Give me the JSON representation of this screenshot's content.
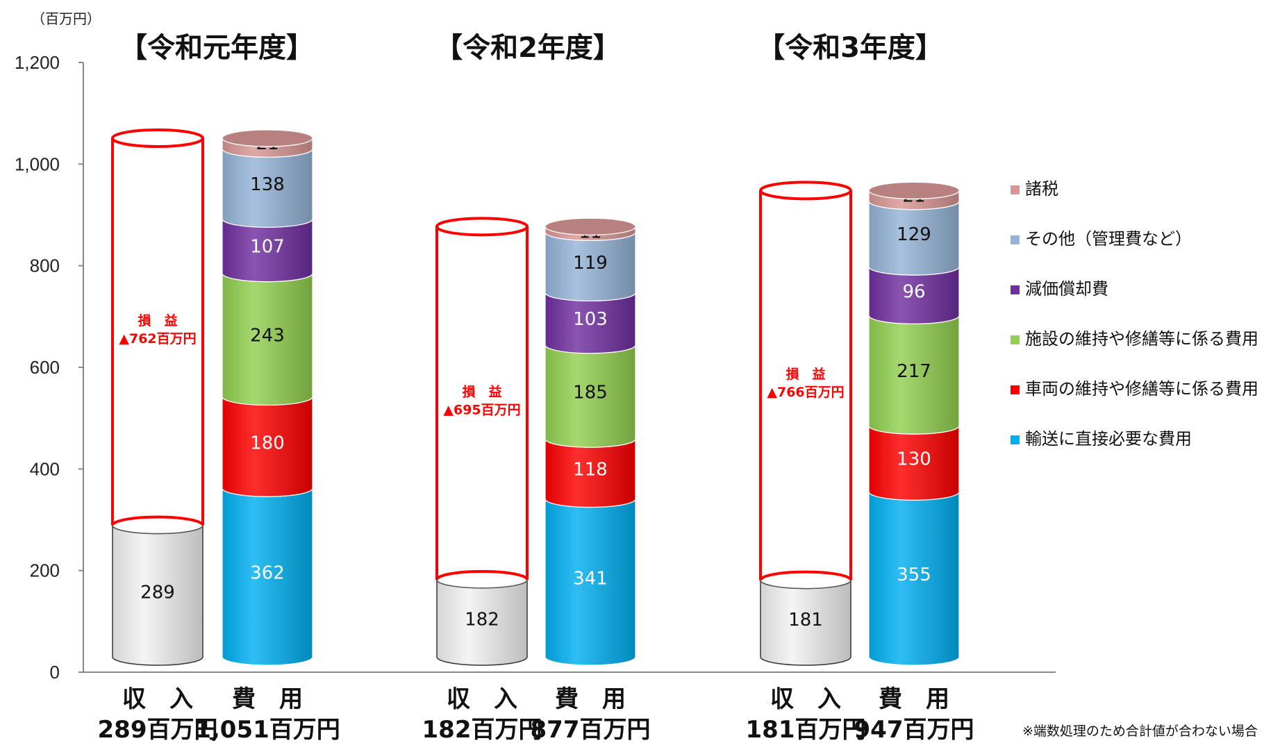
{
  "unit_label": "（百万円）",
  "footnote": "※端数処理のため合計値が合わない場合",
  "colors": {
    "tax": "#d99694",
    "other": "#95b3d7",
    "depreciation": "#7030a0",
    "facility": "#92d050",
    "vehicle": "#ff0000",
    "transport": "#00b0f0",
    "revenue": "#f2f2f2",
    "loss_outline": "#ff0000"
  },
  "chart_data": {
    "type": "bar",
    "stacked": true,
    "ylim": [
      0,
      1200
    ],
    "yticks": [
      0,
      200,
      400,
      600,
      800,
      1000,
      1200
    ],
    "ytick_labels": [
      "0",
      "200",
      "400",
      "600",
      "800",
      "1,000",
      "1,200"
    ],
    "legend_position": "right",
    "legend": [
      {
        "key": "tax",
        "label": "諸税"
      },
      {
        "key": "other",
        "label": "その他（管理費など）"
      },
      {
        "key": "depreciation",
        "label": "減価償却費"
      },
      {
        "key": "facility",
        "label": "施設の維持や修繕等に係る費用"
      },
      {
        "key": "vehicle",
        "label": "車両の維持や修繕等に係る費用"
      },
      {
        "key": "transport",
        "label": "輸送に直接必要な費用"
      }
    ],
    "groups": [
      {
        "title": "【令和元年度】",
        "revenue": {
          "value": 289,
          "label": "289",
          "category": "収　入",
          "total": "289百万円"
        },
        "loss": {
          "line1": "損　益",
          "line2": "▲762百万円"
        },
        "costs": {
          "category": "費　用",
          "total": "1,051百万円",
          "segments": [
            {
              "key": "transport",
              "value": 362,
              "label": "362"
            },
            {
              "key": "vehicle",
              "value": 180,
              "label": "180"
            },
            {
              "key": "facility",
              "value": 243,
              "label": "243"
            },
            {
              "key": "depreciation",
              "value": 107,
              "label": "107"
            },
            {
              "key": "other",
              "value": 138,
              "label": "138"
            },
            {
              "key": "tax",
              "value": 21,
              "label": "21"
            }
          ]
        }
      },
      {
        "title": "【令和2年度】",
        "revenue": {
          "value": 182,
          "label": "182",
          "category": "収　入",
          "total": "182百万円"
        },
        "loss": {
          "line1": "損　益",
          "line2": "▲695百万円"
        },
        "costs": {
          "category": "費　用",
          "total": "877百万円",
          "segments": [
            {
              "key": "transport",
              "value": 341,
              "label": "341"
            },
            {
              "key": "vehicle",
              "value": 118,
              "label": "118"
            },
            {
              "key": "facility",
              "value": 185,
              "label": "185"
            },
            {
              "key": "depreciation",
              "value": 103,
              "label": "103"
            },
            {
              "key": "other",
              "value": 119,
              "label": "119"
            },
            {
              "key": "tax",
              "value": 11,
              "label": "11"
            }
          ]
        }
      },
      {
        "title": "【令和3年度】",
        "revenue": {
          "value": 181,
          "label": "181",
          "category": "収　入",
          "total": "181百万円"
        },
        "loss": {
          "line1": "損　益",
          "line2": "▲766百万円"
        },
        "costs": {
          "category": "費　用",
          "total": "947百万円",
          "segments": [
            {
              "key": "transport",
              "value": 355,
              "label": "355"
            },
            {
              "key": "vehicle",
              "value": 130,
              "label": "130"
            },
            {
              "key": "facility",
              "value": 217,
              "label": "217"
            },
            {
              "key": "depreciation",
              "value": 96,
              "label": "96"
            },
            {
              "key": "other",
              "value": 129,
              "label": "129"
            },
            {
              "key": "tax",
              "value": 21,
              "label": "21"
            }
          ]
        }
      }
    ]
  }
}
